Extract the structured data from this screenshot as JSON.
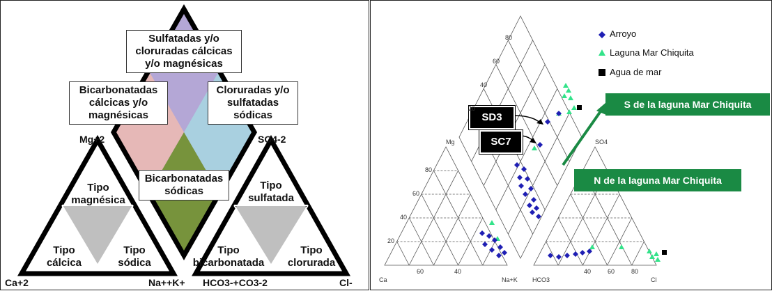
{
  "left": {
    "regions": {
      "top": "Sulfatadas y/o\ncloruradas cálcicas\ny/o magnésicas",
      "left": "Bicarbonatadas\ncálcicas y/o\nmagnésicas",
      "right": "Cloruradas y/o\nsulfatadas\nsódicas",
      "center": "Bicarbonatadas\nsódicas"
    },
    "cation": {
      "top": "Tipo\nmagnésica",
      "bl": "Tipo\ncálcica",
      "br": "Tipo\nsódica"
    },
    "anion": {
      "top": "Tipo\nsulfatada",
      "bl": "Tipo\nbicarbonatada",
      "br": "Tipo\nclorurada"
    },
    "corners": {
      "mg": "Mg+2",
      "so4": "SO4-2",
      "ca": "Ca+2",
      "nak": "Na++K+",
      "hco3": "HCO3-+CO3-2",
      "cl": "Cl-"
    },
    "colors": {
      "top": "#b4a7d6",
      "left": "#e6b8b7",
      "right": "#a9d0e0",
      "center": "#77933c",
      "gray": "#bfbfbf"
    }
  },
  "right": {
    "legend": [
      {
        "label": "Arroyo",
        "color": "#1f1fb4",
        "shape": "diamond"
      },
      {
        "label": "Laguna Mar Chiquita",
        "color": "#33e38a",
        "shape": "triangle"
      },
      {
        "label": "Agua de mar",
        "color": "#000000",
        "shape": "square"
      }
    ],
    "callouts": {
      "sd3": "SD3",
      "sc7": "SC7"
    },
    "notes": {
      "south": "S de la laguna Mar Chiquita",
      "north": "N de la laguna Mar Chiquita"
    },
    "axes": {
      "mg": "Mg",
      "ca": "Ca",
      "nak": "Na+K",
      "so4": "SO4",
      "hco3": "HCO3",
      "cl": "Cl"
    },
    "ticks": [
      "20",
      "40",
      "60",
      "80"
    ]
  }
}
